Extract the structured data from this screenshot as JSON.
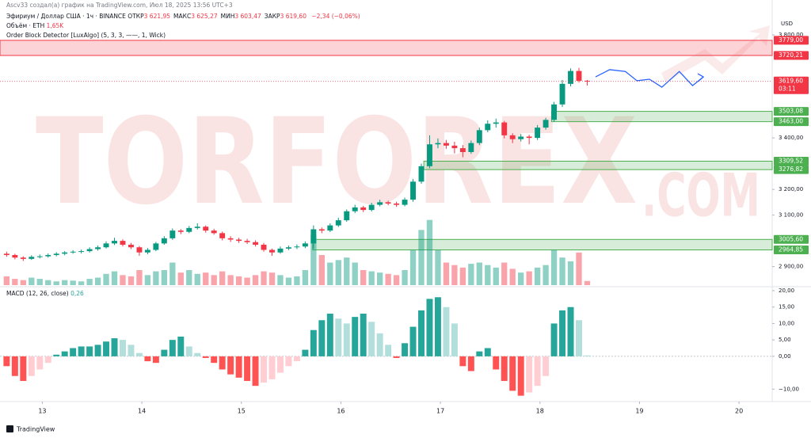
{
  "header": {
    "author_line": "Ascv33 создал(а) график на TradingView.com, Июл 18, 2025 13:56 UTC+3",
    "symbol": "Эфириум / Доллар США · 1ч · BINANCE",
    "ohlc": [
      {
        "label": "ОТКР",
        "value": "3 621,95"
      },
      {
        "label": "МАКС",
        "value": "3 625,27"
      },
      {
        "label": "МИН",
        "value": "3 603,47"
      },
      {
        "label": "ЗАКР",
        "value": "3 619,60"
      }
    ],
    "change": "−2,34 (−0,06%)",
    "volume_label": "Объём · ETH",
    "volume_last": "1,65K",
    "indicator": "Order Block Detector [LuxAlgo] (5, 3, 3, ——, 1, Wick)",
    "currency": "USD"
  },
  "watermark": {
    "main": "TORFOREX",
    "suffix": ".COM"
  },
  "footer": "TradingView",
  "chart_data": [
    {
      "type": "candlestick",
      "xlim": [
        -0.8,
        92.3
      ],
      "ylim": [
        2828,
        3828
      ],
      "vlim": [
        0,
        30
      ],
      "xticks": [
        {
          "value": 4.3,
          "label": "13"
        },
        {
          "value": 16.3,
          "label": "14"
        },
        {
          "value": 28.3,
          "label": "15"
        },
        {
          "value": 40.3,
          "label": "16"
        },
        {
          "value": 52.3,
          "label": "17"
        },
        {
          "value": 64.3,
          "label": "18"
        },
        {
          "value": 76.3,
          "label": "19"
        },
        {
          "value": 88.3,
          "label": "20"
        }
      ],
      "yticks": [
        {
          "value": 3800,
          "label": "3 800,00"
        },
        {
          "value": 3400,
          "label": "3 400,00"
        },
        {
          "value": 3200,
          "label": "3 200,00"
        },
        {
          "value": 3100,
          "label": "3 100,00"
        },
        {
          "value": 2900,
          "label": "2 900,00"
        }
      ],
      "colors": {
        "up": "#089981",
        "down": "#f23645"
      },
      "candles": [
        [
          2950,
          2958,
          2938,
          2945
        ],
        [
          2945,
          2950,
          2928,
          2935
        ],
        [
          2935,
          2940,
          2922,
          2930
        ],
        [
          2930,
          2944,
          2926,
          2938
        ],
        [
          2938,
          2947,
          2932,
          2940
        ],
        [
          2940,
          2951,
          2935,
          2945
        ],
        [
          2945,
          2956,
          2940,
          2950
        ],
        [
          2950,
          2960,
          2944,
          2955
        ],
        [
          2955,
          2964,
          2950,
          2958
        ],
        [
          2958,
          2966,
          2951,
          2960
        ],
        [
          2960,
          2975,
          2955,
          2968
        ],
        [
          2968,
          2982,
          2962,
          2975
        ],
        [
          2975,
          2998,
          2970,
          2990
        ],
        [
          2990,
          3012,
          2984,
          3000
        ],
        [
          3000,
          3006,
          2978,
          2985
        ],
        [
          2985,
          2992,
          2968,
          2975
        ],
        [
          2975,
          2980,
          2942,
          2955
        ],
        [
          2955,
          2972,
          2948,
          2965
        ],
        [
          2965,
          2996,
          2960,
          2990
        ],
        [
          2990,
          3018,
          2985,
          3010
        ],
        [
          3010,
          3048,
          3004,
          3040
        ],
        [
          3040,
          3046,
          3026,
          3035
        ],
        [
          3035,
          3058,
          3030,
          3050
        ],
        [
          3050,
          3068,
          3044,
          3055
        ],
        [
          3055,
          3060,
          3032,
          3040
        ],
        [
          3040,
          3047,
          3024,
          3030
        ],
        [
          3030,
          3036,
          3002,
          3010
        ],
        [
          3010,
          3018,
          2996,
          3005
        ],
        [
          3005,
          3012,
          2992,
          3000
        ],
        [
          3000,
          3008,
          2988,
          2995
        ],
        [
          2995,
          3002,
          2978,
          2985
        ],
        [
          2985,
          2992,
          2958,
          2965
        ],
        [
          2965,
          2970,
          2942,
          2955
        ],
        [
          2955,
          2978,
          2950,
          2970
        ],
        [
          2970,
          2982,
          2964,
          2975
        ],
        [
          2975,
          2986,
          2968,
          2978
        ],
        [
          2978,
          2998,
          2972,
          2990
        ],
        [
          2990,
          3060,
          2970,
          3045
        ],
        [
          3045,
          3052,
          3030,
          3040
        ],
        [
          3040,
          3068,
          3034,
          3060
        ],
        [
          3060,
          3090,
          3054,
          3080
        ],
        [
          3080,
          3122,
          3074,
          3115
        ],
        [
          3115,
          3140,
          3108,
          3130
        ],
        [
          3130,
          3136,
          3112,
          3120
        ],
        [
          3120,
          3148,
          3114,
          3140
        ],
        [
          3140,
          3160,
          3134,
          3150
        ],
        [
          3150,
          3156,
          3138,
          3145
        ],
        [
          3145,
          3152,
          3132,
          3140
        ],
        [
          3140,
          3168,
          3134,
          3160
        ],
        [
          3160,
          3240,
          3152,
          3230
        ],
        [
          3230,
          3300,
          3222,
          3290
        ],
        [
          3290,
          3410,
          3282,
          3375
        ],
        [
          3375,
          3398,
          3360,
          3380
        ],
        [
          3380,
          3392,
          3358,
          3370
        ],
        [
          3370,
          3385,
          3340,
          3360
        ],
        [
          3360,
          3372,
          3325,
          3345
        ],
        [
          3345,
          3390,
          3338,
          3380
        ],
        [
          3380,
          3440,
          3372,
          3430
        ],
        [
          3430,
          3468,
          3422,
          3455
        ],
        [
          3455,
          3475,
          3440,
          3460
        ],
        [
          3460,
          3466,
          3398,
          3410
        ],
        [
          3410,
          3418,
          3380,
          3395
        ],
        [
          3395,
          3415,
          3386,
          3405
        ],
        [
          3405,
          3412,
          3375,
          3400
        ],
        [
          3400,
          3450,
          3392,
          3440
        ],
        [
          3440,
          3478,
          3432,
          3470
        ],
        [
          3470,
          3540,
          3462,
          3530
        ],
        [
          3530,
          3625,
          3520,
          3610
        ],
        [
          3610,
          3670,
          3600,
          3660
        ],
        [
          3660,
          3672,
          3615,
          3621.95
        ],
        [
          3621.95,
          3625.27,
          3603.47,
          3619.6
        ]
      ],
      "volume": [
        3.5,
        2.5,
        2.0,
        3.0,
        2.5,
        2.0,
        1.5,
        2.0,
        1.8,
        1.5,
        2.5,
        3.0,
        4.5,
        5.5,
        4.0,
        3.5,
        6.0,
        4.0,
        5.5,
        6.0,
        9.0,
        5.0,
        6.0,
        4.5,
        5.0,
        4.0,
        5.5,
        4.0,
        3.5,
        3.0,
        4.0,
        5.5,
        5.0,
        4.0,
        3.0,
        3.5,
        6.0,
        20.0,
        12.0,
        9.0,
        10,
        11,
        9,
        6,
        5.5,
        5,
        4.5,
        4,
        6,
        14,
        22,
        26,
        14,
        9,
        8,
        7,
        8.5,
        9,
        8,
        7,
        9,
        6.5,
        5,
        5.5,
        7,
        8,
        14,
        11,
        9.5,
        13,
        1.65
      ],
      "zones": [
        {
          "low": 3720.21,
          "high": 3779.0,
          "low_label": "3720,21",
          "high_label": "3779,00",
          "start": -0.8,
          "color": "#f23645"
        },
        {
          "low": 3463.0,
          "high": 3503.08,
          "low_label": "3463,00",
          "high_label": "3503,08",
          "start": 65.7,
          "color": "#4caf50"
        },
        {
          "low": 3276.82,
          "high": 3309.52,
          "low_label": "3276,82",
          "high_label": "3309,52",
          "start": 50.3,
          "color": "#4caf50"
        },
        {
          "low": 2964.85,
          "high": 3005.6,
          "low_label": "2964,85",
          "high_label": "3005,60",
          "start": 36.9,
          "color": "#4caf50"
        }
      ],
      "last": {
        "value": 3619.6,
        "label": "3619,60",
        "countdown": "03:11",
        "color": "#f23645"
      },
      "forecast": {
        "x": [
          71,
          72.7,
          74.6,
          76,
          77.5,
          79,
          81.1,
          82.7,
          84
        ],
        "values": [
          3637,
          3665,
          3658,
          3622,
          3628,
          3597,
          3658,
          3603,
          3637
        ],
        "color": "#2962ff"
      }
    },
    {
      "type": "bar",
      "title": "MACD (12, 26, close)",
      "last_label": "0,26",
      "ylim": [
        -13.3,
        21.2
      ],
      "yticks": [
        {
          "value": 20,
          "label": "20,00"
        },
        {
          "value": 15,
          "label": "15,00"
        },
        {
          "value": 10,
          "label": "10,00"
        },
        {
          "value": 5,
          "label": "5,00"
        },
        {
          "value": 0,
          "label": "0,00"
        },
        {
          "value": -10,
          "label": "−10,00"
        }
      ],
      "colors": {
        "pos_up": "#26a69a",
        "pos_down": "#b2dfdb",
        "neg_down": "#ff5252",
        "neg_up": "#ffcdd2"
      },
      "values": [
        -3,
        -6,
        -7.5,
        -6,
        -4,
        -2,
        0.5,
        1.5,
        2.5,
        3,
        3,
        3.5,
        4.5,
        5.5,
        5,
        3.5,
        1,
        -1.5,
        -2,
        2,
        5,
        6,
        3,
        1,
        -0.5,
        -2,
        -4,
        -5.5,
        -6.5,
        -7.5,
        -9,
        -8,
        -7,
        -5,
        -3,
        -1.5,
        2,
        8,
        11,
        13,
        11.5,
        10,
        12,
        13,
        10.5,
        7,
        3.5,
        -0.5,
        4,
        9,
        14,
        17.5,
        18,
        15,
        10,
        -3,
        -4.5,
        1.5,
        2.5,
        -4,
        -7.5,
        -10.5,
        -12,
        -11,
        -9,
        -6,
        10,
        14,
        15,
        11,
        0.26
      ]
    }
  ]
}
